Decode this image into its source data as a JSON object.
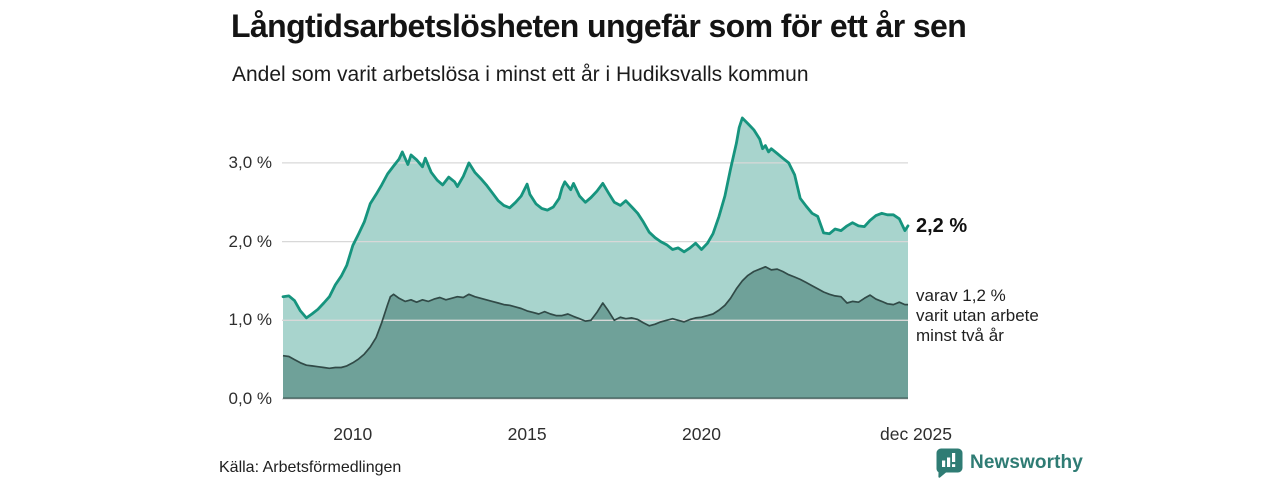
{
  "header": {
    "title": "Långtidsarbetslösheten ungefär som för ett år sen",
    "subtitle": "Andel som varit arbetslösa i minst ett år i Hudiksvalls kommun"
  },
  "annotations": {
    "end_value": "2,2 %",
    "sub_note": "varav 1,2 %\nvarit utan arbete\nminst två år"
  },
  "footer": {
    "source": "Källa: Arbetsförmedlingen",
    "brand": "Newsworthy"
  },
  "icons": {
    "brand_mark": "bar-chart-speech-bubble-icon"
  },
  "colors": {
    "line_total": "#16947e",
    "fill_total": "#a8d4cd",
    "line_two_years": "#314a47",
    "fill_two_years": "#6fa199",
    "gridline": "#d8d8d8",
    "baseline": "rgba(35,55,52,0.55)",
    "brand_teal": "#2f7c74"
  },
  "chart_data": {
    "type": "area",
    "title": "Långtidsarbetslösheten ungefär som för ett år sen",
    "subtitle": "Andel som varit arbetslösa i minst ett år i Hudiksvalls kommun",
    "unit": "%",
    "x_range": [
      2008,
      2025.92
    ],
    "y_range": [
      0,
      3.8
    ],
    "grid": true,
    "legend_position": "right-annotations",
    "y_ticks": [
      {
        "v": 0,
        "label": "0,0 %"
      },
      {
        "v": 1,
        "label": "1,0 %"
      },
      {
        "v": 2,
        "label": "2,0 %"
      },
      {
        "v": 3,
        "label": "3,0 %"
      }
    ],
    "x_ticks": [
      {
        "t": 2010,
        "label": "2010"
      },
      {
        "t": 2015,
        "label": "2015"
      },
      {
        "t": 2020,
        "label": "2020"
      },
      {
        "t": 2025.92,
        "label": "dec 2025"
      }
    ],
    "series": [
      {
        "name": "Andel arbetslösa minst ett år (totalt)",
        "end_value_pct": 2.2,
        "points": [
          [
            2008.0,
            1.3
          ],
          [
            2008.17,
            1.31
          ],
          [
            2008.33,
            1.25
          ],
          [
            2008.5,
            1.12
          ],
          [
            2008.67,
            1.03
          ],
          [
            2008.83,
            1.08
          ],
          [
            2009.0,
            1.14
          ],
          [
            2009.17,
            1.22
          ],
          [
            2009.33,
            1.3
          ],
          [
            2009.5,
            1.45
          ],
          [
            2009.67,
            1.56
          ],
          [
            2009.83,
            1.7
          ],
          [
            2010.0,
            1.95
          ],
          [
            2010.17,
            2.1
          ],
          [
            2010.33,
            2.25
          ],
          [
            2010.5,
            2.48
          ],
          [
            2010.67,
            2.6
          ],
          [
            2010.83,
            2.72
          ],
          [
            2011.0,
            2.86
          ],
          [
            2011.17,
            2.96
          ],
          [
            2011.33,
            3.05
          ],
          [
            2011.42,
            3.14
          ],
          [
            2011.5,
            3.06
          ],
          [
            2011.58,
            2.98
          ],
          [
            2011.67,
            3.1
          ],
          [
            2011.83,
            3.04
          ],
          [
            2012.0,
            2.95
          ],
          [
            2012.08,
            3.06
          ],
          [
            2012.25,
            2.88
          ],
          [
            2012.42,
            2.78
          ],
          [
            2012.58,
            2.72
          ],
          [
            2012.75,
            2.82
          ],
          [
            2012.92,
            2.76
          ],
          [
            2013.0,
            2.7
          ],
          [
            2013.17,
            2.83
          ],
          [
            2013.33,
            3.0
          ],
          [
            2013.5,
            2.88
          ],
          [
            2013.67,
            2.8
          ],
          [
            2013.83,
            2.72
          ],
          [
            2014.0,
            2.62
          ],
          [
            2014.17,
            2.52
          ],
          [
            2014.33,
            2.46
          ],
          [
            2014.5,
            2.43
          ],
          [
            2014.67,
            2.5
          ],
          [
            2014.83,
            2.58
          ],
          [
            2015.0,
            2.73
          ],
          [
            2015.08,
            2.6
          ],
          [
            2015.25,
            2.48
          ],
          [
            2015.42,
            2.42
          ],
          [
            2015.58,
            2.4
          ],
          [
            2015.75,
            2.44
          ],
          [
            2015.92,
            2.55
          ],
          [
            2016.0,
            2.68
          ],
          [
            2016.08,
            2.76
          ],
          [
            2016.25,
            2.66
          ],
          [
            2016.33,
            2.74
          ],
          [
            2016.5,
            2.58
          ],
          [
            2016.67,
            2.5
          ],
          [
            2016.83,
            2.56
          ],
          [
            2017.0,
            2.64
          ],
          [
            2017.17,
            2.74
          ],
          [
            2017.33,
            2.62
          ],
          [
            2017.5,
            2.5
          ],
          [
            2017.67,
            2.46
          ],
          [
            2017.83,
            2.52
          ],
          [
            2018.0,
            2.44
          ],
          [
            2018.17,
            2.36
          ],
          [
            2018.33,
            2.25
          ],
          [
            2018.5,
            2.12
          ],
          [
            2018.67,
            2.05
          ],
          [
            2018.83,
            2.0
          ],
          [
            2019.0,
            1.96
          ],
          [
            2019.17,
            1.9
          ],
          [
            2019.33,
            1.92
          ],
          [
            2019.5,
            1.87
          ],
          [
            2019.67,
            1.92
          ],
          [
            2019.83,
            1.98
          ],
          [
            2020.0,
            1.9
          ],
          [
            2020.17,
            1.98
          ],
          [
            2020.33,
            2.1
          ],
          [
            2020.5,
            2.32
          ],
          [
            2020.67,
            2.58
          ],
          [
            2020.83,
            2.92
          ],
          [
            2021.0,
            3.25
          ],
          [
            2021.08,
            3.45
          ],
          [
            2021.17,
            3.57
          ],
          [
            2021.33,
            3.5
          ],
          [
            2021.5,
            3.42
          ],
          [
            2021.67,
            3.3
          ],
          [
            2021.75,
            3.18
          ],
          [
            2021.83,
            3.22
          ],
          [
            2021.92,
            3.14
          ],
          [
            2022.0,
            3.18
          ],
          [
            2022.17,
            3.12
          ],
          [
            2022.33,
            3.06
          ],
          [
            2022.5,
            3.0
          ],
          [
            2022.67,
            2.85
          ],
          [
            2022.83,
            2.55
          ],
          [
            2023.0,
            2.45
          ],
          [
            2023.17,
            2.36
          ],
          [
            2023.33,
            2.32
          ],
          [
            2023.5,
            2.11
          ],
          [
            2023.67,
            2.1
          ],
          [
            2023.83,
            2.16
          ],
          [
            2024.0,
            2.14
          ],
          [
            2024.17,
            2.2
          ],
          [
            2024.33,
            2.24
          ],
          [
            2024.5,
            2.2
          ],
          [
            2024.67,
            2.19
          ],
          [
            2024.83,
            2.27
          ],
          [
            2025.0,
            2.33
          ],
          [
            2025.17,
            2.36
          ],
          [
            2025.33,
            2.34
          ],
          [
            2025.5,
            2.34
          ],
          [
            2025.67,
            2.29
          ],
          [
            2025.83,
            2.14
          ],
          [
            2025.92,
            2.2
          ]
        ]
      },
      {
        "name": "Varav utan arbete minst två år",
        "end_value_pct": 1.2,
        "points": [
          [
            2008.0,
            0.55
          ],
          [
            2008.17,
            0.54
          ],
          [
            2008.33,
            0.5
          ],
          [
            2008.5,
            0.46
          ],
          [
            2008.67,
            0.43
          ],
          [
            2008.83,
            0.42
          ],
          [
            2009.0,
            0.41
          ],
          [
            2009.17,
            0.4
          ],
          [
            2009.33,
            0.39
          ],
          [
            2009.5,
            0.4
          ],
          [
            2009.67,
            0.4
          ],
          [
            2009.83,
            0.42
          ],
          [
            2010.0,
            0.46
          ],
          [
            2010.17,
            0.51
          ],
          [
            2010.33,
            0.57
          ],
          [
            2010.5,
            0.66
          ],
          [
            2010.67,
            0.78
          ],
          [
            2010.83,
            0.97
          ],
          [
            2011.0,
            1.2
          ],
          [
            2011.08,
            1.3
          ],
          [
            2011.17,
            1.33
          ],
          [
            2011.33,
            1.28
          ],
          [
            2011.5,
            1.24
          ],
          [
            2011.67,
            1.26
          ],
          [
            2011.83,
            1.23
          ],
          [
            2012.0,
            1.26
          ],
          [
            2012.17,
            1.24
          ],
          [
            2012.33,
            1.27
          ],
          [
            2012.5,
            1.29
          ],
          [
            2012.67,
            1.26
          ],
          [
            2012.83,
            1.28
          ],
          [
            2013.0,
            1.3
          ],
          [
            2013.17,
            1.29
          ],
          [
            2013.33,
            1.33
          ],
          [
            2013.5,
            1.3
          ],
          [
            2013.67,
            1.28
          ],
          [
            2013.83,
            1.26
          ],
          [
            2014.0,
            1.24
          ],
          [
            2014.17,
            1.22
          ],
          [
            2014.33,
            1.2
          ],
          [
            2014.5,
            1.19
          ],
          [
            2014.67,
            1.17
          ],
          [
            2014.83,
            1.15
          ],
          [
            2015.0,
            1.12
          ],
          [
            2015.17,
            1.1
          ],
          [
            2015.33,
            1.08
          ],
          [
            2015.5,
            1.11
          ],
          [
            2015.67,
            1.08
          ],
          [
            2015.83,
            1.06
          ],
          [
            2016.0,
            1.06
          ],
          [
            2016.17,
            1.08
          ],
          [
            2016.33,
            1.05
          ],
          [
            2016.5,
            1.02
          ],
          [
            2016.67,
            0.99
          ],
          [
            2016.83,
            1.0
          ],
          [
            2017.0,
            1.1
          ],
          [
            2017.17,
            1.22
          ],
          [
            2017.33,
            1.12
          ],
          [
            2017.5,
            1.0
          ],
          [
            2017.67,
            1.04
          ],
          [
            2017.83,
            1.02
          ],
          [
            2018.0,
            1.03
          ],
          [
            2018.17,
            1.01
          ],
          [
            2018.33,
            0.97
          ],
          [
            2018.5,
            0.93
          ],
          [
            2018.67,
            0.95
          ],
          [
            2018.83,
            0.98
          ],
          [
            2019.0,
            1.0
          ],
          [
            2019.17,
            1.02
          ],
          [
            2019.33,
            1.0
          ],
          [
            2019.5,
            0.98
          ],
          [
            2019.67,
            1.01
          ],
          [
            2019.83,
            1.03
          ],
          [
            2020.0,
            1.04
          ],
          [
            2020.17,
            1.06
          ],
          [
            2020.33,
            1.08
          ],
          [
            2020.5,
            1.13
          ],
          [
            2020.67,
            1.19
          ],
          [
            2020.83,
            1.28
          ],
          [
            2021.0,
            1.4
          ],
          [
            2021.17,
            1.5
          ],
          [
            2021.33,
            1.57
          ],
          [
            2021.5,
            1.62
          ],
          [
            2021.67,
            1.65
          ],
          [
            2021.83,
            1.68
          ],
          [
            2022.0,
            1.64
          ],
          [
            2022.17,
            1.65
          ],
          [
            2022.33,
            1.62
          ],
          [
            2022.5,
            1.58
          ],
          [
            2022.67,
            1.55
          ],
          [
            2022.83,
            1.52
          ],
          [
            2023.0,
            1.48
          ],
          [
            2023.17,
            1.44
          ],
          [
            2023.33,
            1.4
          ],
          [
            2023.5,
            1.36
          ],
          [
            2023.67,
            1.33
          ],
          [
            2023.83,
            1.31
          ],
          [
            2024.0,
            1.3
          ],
          [
            2024.17,
            1.22
          ],
          [
            2024.33,
            1.24
          ],
          [
            2024.5,
            1.23
          ],
          [
            2024.67,
            1.28
          ],
          [
            2024.83,
            1.32
          ],
          [
            2025.0,
            1.27
          ],
          [
            2025.17,
            1.24
          ],
          [
            2025.33,
            1.21
          ],
          [
            2025.5,
            1.2
          ],
          [
            2025.67,
            1.23
          ],
          [
            2025.83,
            1.2
          ],
          [
            2025.92,
            1.2
          ]
        ]
      }
    ]
  }
}
